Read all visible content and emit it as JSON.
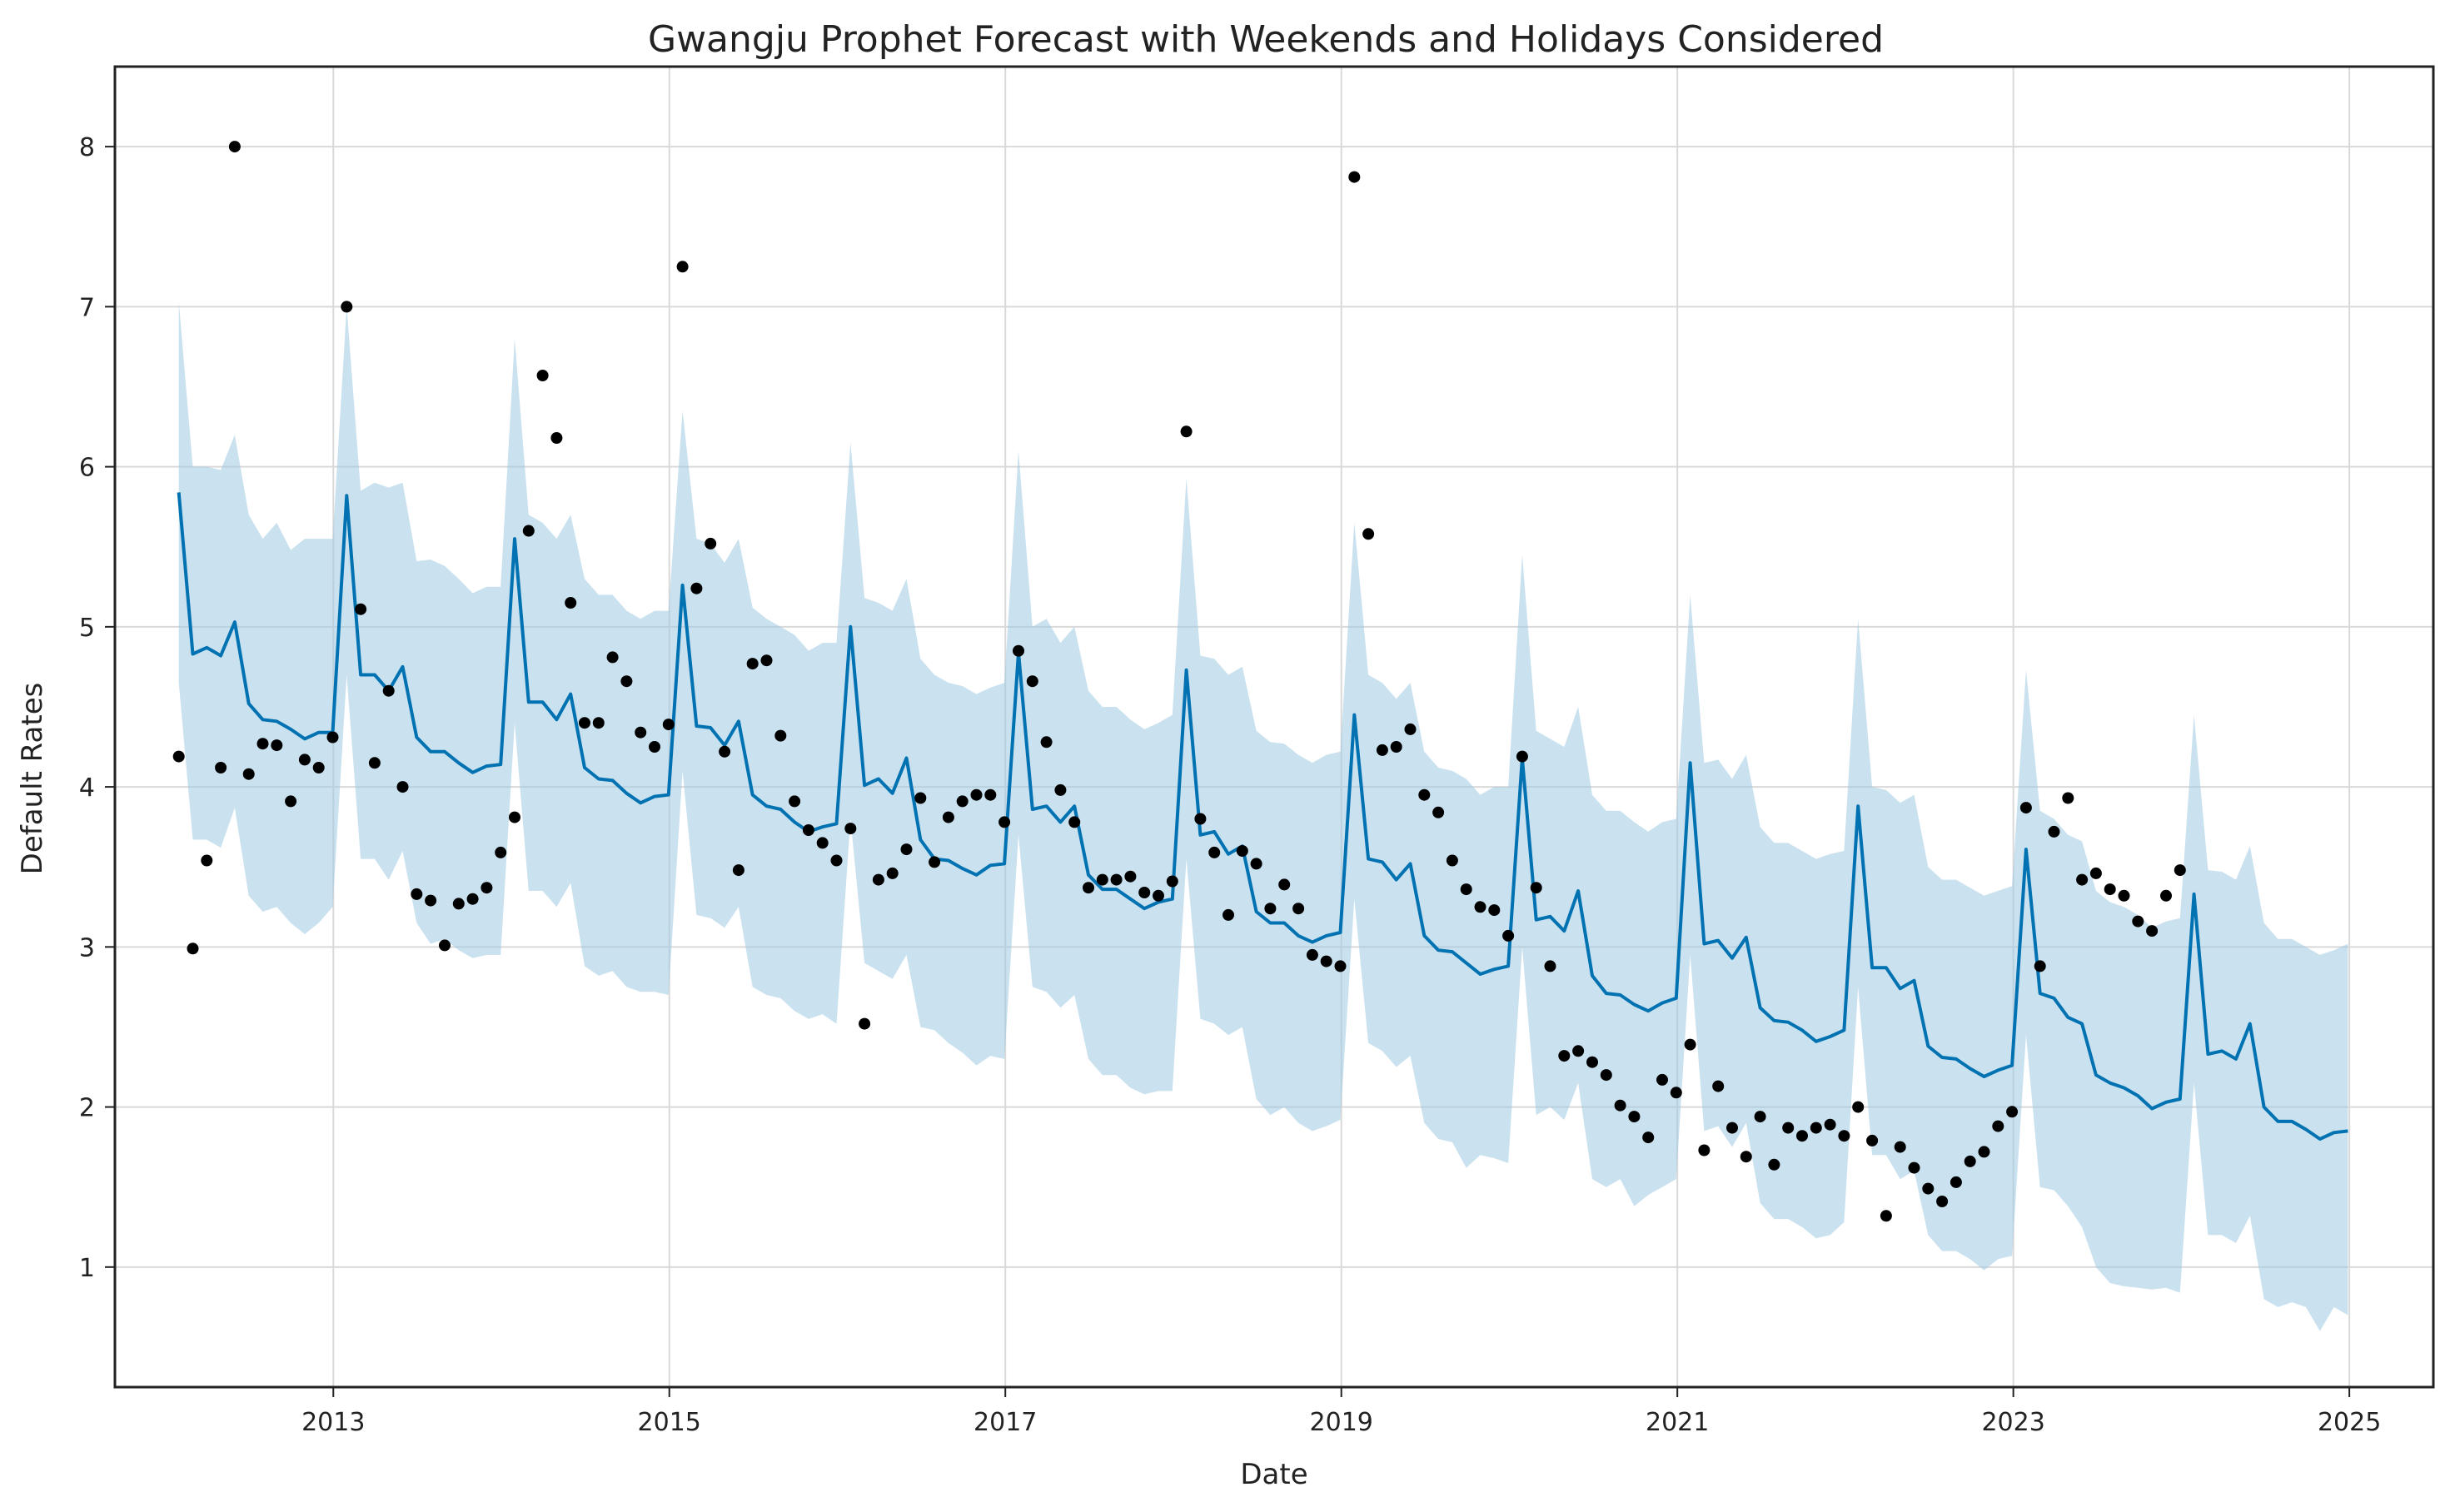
{
  "chart_data": {
    "type": "line",
    "title": "Gwangju Prophet Forecast with Weekends and Holidays Considered",
    "xlabel": "Date",
    "ylabel": "Default Rates",
    "xlim": [
      2011.7,
      2025.5
    ],
    "ylim": [
      0.25,
      8.5
    ],
    "x_ticks": [
      2013,
      2015,
      2017,
      2019,
      2021,
      2023,
      2025
    ],
    "y_ticks": [
      1,
      2,
      3,
      4,
      5,
      6,
      7,
      8
    ],
    "grid": true,
    "colors": {
      "forecast": "#0072b2",
      "interval": "#9ec9e2",
      "observed": "#000000"
    },
    "series": [
      {
        "name": "forecast",
        "type": "line",
        "x_start": 2012.08,
        "step": 0.0833,
        "values": [
          5.84,
          4.83,
          4.87,
          4.82,
          5.03,
          4.52,
          4.42,
          4.41,
          4.36,
          4.3,
          4.34,
          4.34,
          5.82,
          4.7,
          4.7,
          4.6,
          4.75,
          4.31,
          4.22,
          4.22,
          4.15,
          4.09,
          4.13,
          4.14,
          5.55,
          4.53,
          4.53,
          4.42,
          4.58,
          4.12,
          4.05,
          4.04,
          3.96,
          3.9,
          3.94,
          3.95,
          5.26,
          4.38,
          4.37,
          4.26,
          4.41,
          3.95,
          3.88,
          3.86,
          3.78,
          3.72,
          3.75,
          3.77,
          5.0,
          4.01,
          4.05,
          3.96,
          4.18,
          3.67,
          3.55,
          3.54,
          3.49,
          3.45,
          3.51,
          3.52,
          4.84,
          3.86,
          3.88,
          3.78,
          3.88,
          3.45,
          3.36,
          3.36,
          3.3,
          3.24,
          3.28,
          3.3,
          4.73,
          3.7,
          3.72,
          3.58,
          3.63,
          3.22,
          3.15,
          3.15,
          3.07,
          3.03,
          3.07,
          3.09,
          4.45,
          3.55,
          3.53,
          3.42,
          3.52,
          3.07,
          2.98,
          2.97,
          2.9,
          2.83,
          2.86,
          2.88,
          4.18,
          3.17,
          3.19,
          3.1,
          3.35,
          2.82,
          2.71,
          2.7,
          2.64,
          2.6,
          2.65,
          2.68,
          4.15,
          3.02,
          3.04,
          2.93,
          3.06,
          2.62,
          2.54,
          2.53,
          2.48,
          2.41,
          2.44,
          2.48,
          3.88,
          2.87,
          2.87,
          2.74,
          2.79,
          2.38,
          2.31,
          2.3,
          2.24,
          2.19,
          2.23,
          2.26,
          3.61,
          2.71,
          2.68,
          2.56,
          2.52,
          2.2,
          2.15,
          2.12,
          2.07,
          1.99,
          2.03,
          2.05,
          3.33,
          2.33,
          2.35,
          2.3,
          2.52,
          2.0,
          1.91,
          1.91,
          1.86,
          1.8,
          1.84,
          1.85
        ]
      },
      {
        "name": "interval_upper",
        "type": "area",
        "x_start": 2012.08,
        "step": 0.0833,
        "values": [
          7.03,
          6.0,
          6.0,
          5.98,
          6.2,
          5.7,
          5.55,
          5.65,
          5.48,
          5.55,
          5.55,
          5.55,
          7.0,
          5.85,
          5.9,
          5.87,
          5.9,
          5.41,
          5.42,
          5.38,
          5.3,
          5.21,
          5.25,
          5.25,
          6.8,
          5.7,
          5.65,
          5.55,
          5.7,
          5.3,
          5.2,
          5.2,
          5.1,
          5.05,
          5.1,
          5.1,
          6.35,
          5.55,
          5.52,
          5.4,
          5.55,
          5.12,
          5.05,
          5.0,
          4.95,
          4.85,
          4.9,
          4.9,
          6.15,
          5.18,
          5.15,
          5.1,
          5.3,
          4.8,
          4.7,
          4.65,
          4.63,
          4.58,
          4.62,
          4.65,
          6.1,
          5.0,
          5.05,
          4.9,
          5.0,
          4.6,
          4.5,
          4.5,
          4.42,
          4.36,
          4.4,
          4.45,
          5.93,
          4.82,
          4.8,
          4.7,
          4.75,
          4.35,
          4.28,
          4.27,
          4.2,
          4.15,
          4.2,
          4.22,
          5.65,
          4.7,
          4.65,
          4.55,
          4.65,
          4.22,
          4.12,
          4.1,
          4.05,
          3.95,
          4.0,
          4.0,
          5.45,
          4.35,
          4.3,
          4.25,
          4.5,
          3.95,
          3.85,
          3.85,
          3.78,
          3.72,
          3.78,
          3.8,
          5.2,
          4.15,
          4.17,
          4.05,
          4.2,
          3.75,
          3.65,
          3.65,
          3.6,
          3.55,
          3.58,
          3.6,
          5.05,
          4.0,
          3.98,
          3.9,
          3.95,
          3.5,
          3.42,
          3.42,
          3.37,
          3.32,
          3.35,
          3.38,
          4.73,
          3.85,
          3.8,
          3.7,
          3.66,
          3.35,
          3.28,
          3.25,
          3.2,
          3.12,
          3.16,
          3.18,
          4.45,
          3.48,
          3.47,
          3.42,
          3.63,
          3.15,
          3.05,
          3.05,
          3.0,
          2.95,
          2.98,
          3.02
        ]
      },
      {
        "name": "interval_lower",
        "type": "area",
        "x_start": 2012.08,
        "step": 0.0833,
        "values": [
          4.65,
          3.67,
          3.67,
          3.62,
          3.87,
          3.32,
          3.22,
          3.25,
          3.15,
          3.08,
          3.15,
          3.25,
          4.7,
          3.55,
          3.55,
          3.42,
          3.6,
          3.15,
          3.02,
          3.05,
          2.98,
          2.93,
          2.95,
          2.95,
          4.4,
          3.35,
          3.35,
          3.25,
          3.4,
          2.88,
          2.82,
          2.85,
          2.75,
          2.72,
          2.72,
          2.7,
          4.1,
          3.2,
          3.18,
          3.12,
          3.25,
          2.75,
          2.7,
          2.68,
          2.6,
          2.55,
          2.58,
          2.52,
          3.8,
          2.9,
          2.85,
          2.8,
          2.95,
          2.5,
          2.48,
          2.4,
          2.34,
          2.26,
          2.32,
          2.3,
          3.7,
          2.75,
          2.72,
          2.62,
          2.7,
          2.3,
          2.2,
          2.2,
          2.12,
          2.08,
          2.1,
          2.1,
          3.55,
          2.55,
          2.52,
          2.45,
          2.5,
          2.05,
          1.95,
          2.0,
          1.9,
          1.85,
          1.88,
          1.92,
          3.3,
          2.4,
          2.35,
          2.25,
          2.32,
          1.9,
          1.8,
          1.78,
          1.62,
          1.7,
          1.68,
          1.65,
          3.0,
          1.95,
          2.0,
          1.92,
          2.15,
          1.55,
          1.5,
          1.55,
          1.38,
          1.45,
          1.5,
          1.55,
          2.95,
          1.85,
          1.88,
          1.75,
          1.9,
          1.4,
          1.3,
          1.3,
          1.25,
          1.18,
          1.2,
          1.28,
          2.75,
          1.7,
          1.7,
          1.55,
          1.6,
          1.2,
          1.1,
          1.1,
          1.05,
          0.98,
          1.05,
          1.07,
          2.45,
          1.5,
          1.48,
          1.38,
          1.25,
          1.0,
          0.9,
          0.88,
          0.87,
          0.86,
          0.87,
          0.84,
          2.15,
          1.2,
          1.2,
          1.15,
          1.32,
          0.8,
          0.75,
          0.78,
          0.75,
          0.6,
          0.75,
          0.7
        ]
      },
      {
        "name": "observed",
        "type": "scatter",
        "x_start": 2012.08,
        "step": 0.0833,
        "values": [
          4.19,
          2.99,
          3.54,
          4.12,
          8.0,
          4.08,
          4.27,
          4.26,
          3.91,
          4.17,
          4.12,
          4.31,
          7.0,
          5.11,
          4.15,
          4.6,
          4.0,
          3.33,
          3.29,
          3.01,
          3.27,
          3.3,
          3.37,
          3.59,
          3.81,
          5.6,
          6.57,
          6.18,
          5.15,
          4.4,
          4.4,
          4.81,
          4.66,
          4.34,
          4.25,
          4.39,
          7.25,
          5.24,
          5.52,
          4.22,
          3.48,
          4.77,
          4.79,
          4.32,
          3.91,
          3.73,
          3.65,
          3.54,
          3.74,
          2.52,
          3.42,
          3.46,
          3.61,
          3.93,
          3.53,
          3.81,
          3.91,
          3.95,
          3.95,
          3.78,
          4.85,
          4.66,
          4.28,
          3.98,
          3.78,
          3.37,
          3.42,
          3.42,
          3.44,
          3.34,
          3.32,
          3.41,
          6.22,
          3.8,
          3.59,
          3.2,
          3.6,
          3.52,
          3.24,
          3.39,
          3.24,
          2.95,
          2.91,
          2.88,
          7.81,
          5.58,
          4.23,
          4.25,
          4.36,
          3.95,
          3.84,
          3.54,
          3.36,
          3.25,
          3.23,
          3.07,
          4.19,
          3.37,
          2.88,
          2.32,
          2.35,
          2.28,
          2.2,
          2.01,
          1.94,
          1.81,
          2.17,
          2.09,
          2.39,
          1.73,
          2.13,
          1.87,
          1.69,
          1.94,
          1.64,
          1.87,
          1.82,
          1.87,
          1.89,
          1.82,
          2.0,
          1.79,
          1.32,
          1.75,
          1.62,
          1.49,
          1.41,
          1.53,
          1.66,
          1.72,
          1.88,
          1.97,
          3.87,
          2.88,
          3.72,
          3.93,
          3.42,
          3.46,
          3.36,
          3.32,
          3.16,
          3.1,
          3.32,
          3.48
        ]
      }
    ]
  }
}
